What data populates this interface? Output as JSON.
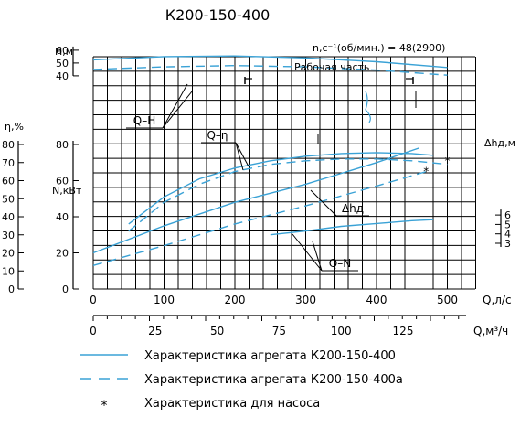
{
  "chart_data": {
    "type": "line",
    "title": "К200-150-400",
    "speed_label": "n,c⁻¹(об/мин.) = 48(2900)",
    "working_zone_label": "Рабочая часть",
    "x_axis": {
      "label": "Q,л/с",
      "ticks": [
        0,
        100,
        200,
        300,
        400,
        500
      ],
      "range": [
        0,
        500
      ]
    },
    "x_axis_m3h": {
      "label": "Q,м³/ч",
      "ticks": [
        0,
        25,
        50,
        75,
        100,
        125
      ]
    },
    "axes": {
      "H": {
        "label": "Н,м",
        "ticks": [
          40,
          50,
          60
        ]
      },
      "eta": {
        "label": "η,%",
        "ticks": [
          0,
          10,
          20,
          30,
          40,
          50,
          60,
          70,
          80
        ]
      },
      "N": {
        "label": "N,кВт",
        "ticks": [
          0,
          20,
          40,
          60,
          80
        ]
      },
      "dh": {
        "label": "Δhд,м",
        "ticks": [
          3,
          4,
          5,
          6
        ]
      }
    },
    "curve_labels": {
      "qh": "Q–H",
      "qeta": "Q–η",
      "qdh": "Δhд",
      "qn": "Q–N"
    },
    "series": [
      {
        "curve": "Q-H",
        "variant": "К200-150-400",
        "axis": "H",
        "x": [
          0,
          100,
          200,
          300,
          400,
          500
        ],
        "y": [
          52.5,
          55,
          55.5,
          54,
          51,
          46.5
        ]
      },
      {
        "curve": "Q-H",
        "variant": "К200-150-400а",
        "axis": "H",
        "x": [
          0,
          100,
          200,
          300,
          400,
          500
        ],
        "y": [
          45,
          47,
          48,
          47,
          44.5,
          40.5
        ]
      },
      {
        "curve": "Q-η",
        "variant": "К200-150-400",
        "axis": "eta",
        "x": [
          50,
          100,
          150,
          200,
          250,
          300,
          350,
          400,
          450,
          480
        ],
        "y": [
          36,
          51,
          61,
          67,
          71,
          73.5,
          75,
          75.5,
          75,
          74
        ]
      },
      {
        "curve": "Q-η",
        "variant": "К200-150-400а",
        "axis": "eta",
        "x": [
          50,
          100,
          150,
          200,
          250,
          300,
          350,
          400,
          450,
          500
        ],
        "y": [
          32,
          48,
          58,
          65,
          69,
          71,
          72,
          72,
          71,
          69
        ]
      },
      {
        "curve": "Δhд",
        "variant": "К200-150-400",
        "axis": "dh",
        "x": [
          250,
          300,
          350,
          400,
          450,
          480
        ],
        "y": [
          3.9,
          4.3,
          4.8,
          5.1,
          5.4,
          5.5
        ]
      },
      {
        "curve": "Q-N",
        "variant": "К200-150-400",
        "axis": "N",
        "x": [
          0,
          100,
          200,
          300,
          400,
          460
        ],
        "y": [
          20,
          35,
          48,
          58,
          70,
          78
        ]
      },
      {
        "curve": "Q-N",
        "variant": "К200-150-400а",
        "axis": "N",
        "x": [
          0,
          100,
          200,
          300,
          400,
          470
        ],
        "y": [
          13,
          24,
          36,
          46,
          57,
          65
        ]
      }
    ],
    "pump_points": [
      {
        "curve": "Q-η",
        "x": 500,
        "y": 72
      },
      {
        "curve": "Q-N",
        "x": 470,
        "y": 66
      }
    ],
    "legend": [
      {
        "style": "solid",
        "text": "Характеристика агрегата К200-150-400"
      },
      {
        "style": "dashed",
        "text": "Характеристика агрегата К200-150-400а"
      },
      {
        "style": "star",
        "text": "Характеристика для насоса"
      }
    ],
    "grid": true,
    "legend_position": "bottom",
    "colors": {
      "curves": "#3aa2d6",
      "grid": "#000000"
    }
  }
}
